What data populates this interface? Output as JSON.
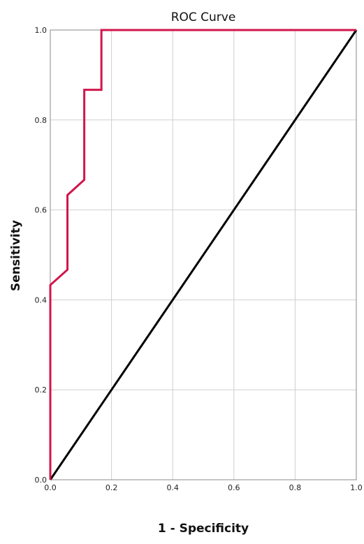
{
  "chart_data": {
    "type": "line",
    "title": "ROC Curve",
    "xlabel": "1 - Specificity",
    "ylabel": "Sensitivity",
    "xlim": [
      0,
      1
    ],
    "ylim": [
      0,
      1
    ],
    "x_ticks": [
      "0.0",
      "0.2",
      "0.4",
      "0.6",
      "0.8",
      "1.0"
    ],
    "y_ticks": [
      "0.0",
      "0.2",
      "0.4",
      "0.6",
      "0.8",
      "1.0"
    ],
    "grid": true,
    "series": [
      {
        "color": "#d0164c",
        "x": [
          0,
          0,
          0.056,
          0.056,
          0.111,
          0.111,
          0.167,
          0.167,
          1.0
        ],
        "y": [
          0,
          0.433,
          0.467,
          0.633,
          0.667,
          0.867,
          0.867,
          1.0,
          1.0
        ]
      },
      {
        "color": "#000000",
        "x": [
          0,
          1
        ],
        "y": [
          0,
          1
        ]
      }
    ]
  }
}
